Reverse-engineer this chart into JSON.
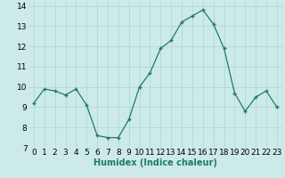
{
  "x": [
    0,
    1,
    2,
    3,
    4,
    5,
    6,
    7,
    8,
    9,
    10,
    11,
    12,
    13,
    14,
    15,
    16,
    17,
    18,
    19,
    20,
    21,
    22,
    23
  ],
  "y": [
    9.2,
    9.9,
    9.8,
    9.6,
    9.9,
    9.1,
    7.6,
    7.5,
    7.5,
    8.4,
    10.0,
    10.7,
    11.9,
    12.3,
    13.2,
    13.5,
    13.8,
    13.1,
    11.9,
    9.7,
    8.8,
    9.5,
    9.8,
    9.0
  ],
  "xlabel": "Humidex (Indice chaleur)",
  "ylim": [
    7,
    14.2
  ],
  "xlim": [
    -0.5,
    23.5
  ],
  "yticks": [
    7,
    8,
    9,
    10,
    11,
    12,
    13,
    14
  ],
  "xticks": [
    0,
    1,
    2,
    3,
    4,
    5,
    6,
    7,
    8,
    9,
    10,
    11,
    12,
    13,
    14,
    15,
    16,
    17,
    18,
    19,
    20,
    21,
    22,
    23
  ],
  "line_color": "#1f7a6d",
  "bg_color": "#cceae8",
  "grid_color": "#aad5d2",
  "xlabel_fontsize": 7,
  "tick_fontsize": 6.5,
  "xlabel_fontweight": "bold",
  "xlabel_color": "#1f7a6d"
}
